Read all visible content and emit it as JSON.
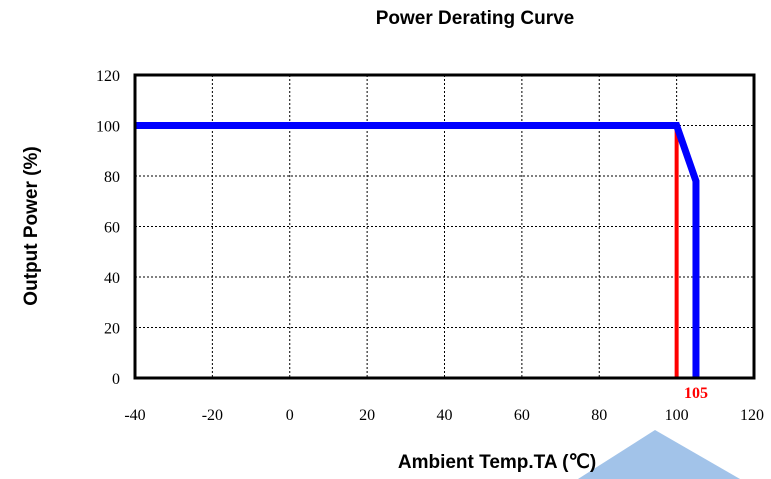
{
  "chart_data": {
    "type": "line",
    "title": "Power Derating Curve",
    "xlabel": "Ambient Temp.TA (℃)",
    "ylabel": "Output Power (%)",
    "xlim": [
      -40,
      120
    ],
    "ylim": [
      0,
      120
    ],
    "x_ticks": [
      "-40",
      "-20",
      "0",
      "20",
      "40",
      "60",
      "80",
      "100",
      "120"
    ],
    "y_ticks": [
      "0",
      "20",
      "40",
      "60",
      "80",
      "100",
      "120"
    ],
    "x_tick_values": [
      -40,
      -20,
      0,
      20,
      40,
      60,
      80,
      100,
      120
    ],
    "y_tick_values": [
      0,
      20,
      40,
      60,
      80,
      100,
      120
    ],
    "grid": true,
    "series": [
      {
        "color": "#0000ff",
        "points": [
          {
            "x": -40,
            "y": 100
          },
          {
            "x": 100,
            "y": 100
          },
          {
            "x": 105,
            "y": 78
          },
          {
            "x": 105,
            "y": 0
          }
        ]
      },
      {
        "color": "#ff0000",
        "points": [
          {
            "x": 100,
            "y": 100
          },
          {
            "x": 100,
            "y": 0
          }
        ]
      }
    ],
    "annotations": [
      {
        "text": "105",
        "x": 105,
        "y": 0,
        "color": "#ff0000"
      }
    ]
  }
}
